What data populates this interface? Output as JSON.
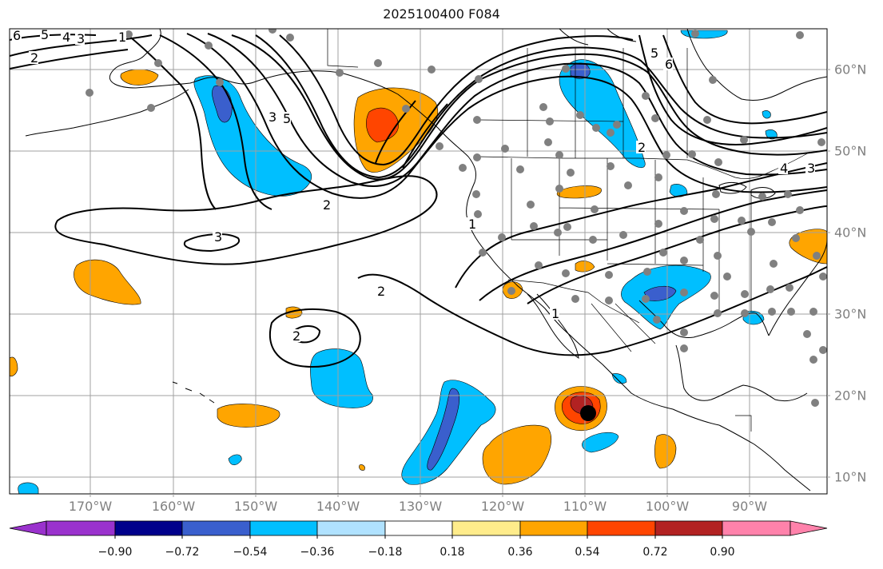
{
  "title": "2025100400 F084",
  "lon_labels": [
    "170°W",
    "160°W",
    "150°W",
    "140°W",
    "130°W",
    "120°W",
    "110°W",
    "100°W",
    "90°W"
  ],
  "lat_labels": [
    "60°N",
    "50°N",
    "40°N",
    "30°N",
    "20°N",
    "10°N"
  ],
  "colorbar": {
    "colors": [
      "#9a32cd",
      "#00008b",
      "#3a5fcd",
      "#00bfff",
      "#b0e2ff",
      "#ffffff",
      "#ffec8b",
      "#ffa500",
      "#ff4500",
      "#b22222",
      "#ff82ab"
    ],
    "ticks": [
      "−0.90",
      "−0.72",
      "−0.54",
      "−0.36",
      "−0.18",
      "0.18",
      "0.36",
      "0.54",
      "0.72",
      "0.90"
    ]
  },
  "contour_labels": [
    "6",
    "5",
    "4",
    "3",
    "2",
    "1",
    "3",
    "5",
    "2",
    "3",
    "2",
    "1",
    "5",
    "6",
    "2",
    "4",
    "3",
    "1",
    "2"
  ],
  "colors": {
    "coast": "#000000",
    "grid": "#a0a0a0",
    "station": "#808080",
    "storm": "#000000"
  }
}
